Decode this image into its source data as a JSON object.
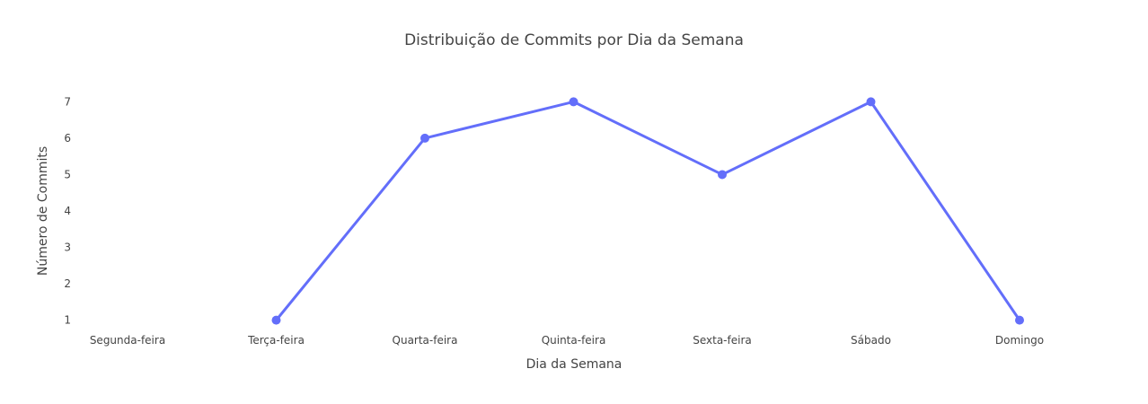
{
  "chart_data": {
    "type": "line",
    "title": "Distribuição de Commits por Dia da Semana",
    "xlabel": "Dia da Semana",
    "ylabel": "Número de Commits",
    "categories": [
      "Segunda-feira",
      "Terça-feira",
      "Quarta-feira",
      "Quinta-feira",
      "Sexta-feira",
      "Sábado",
      "Domingo"
    ],
    "series": [
      {
        "values": [
          null,
          1,
          6,
          7,
          5,
          7,
          1
        ],
        "color": "#636efa"
      }
    ],
    "yticks": [
      1,
      2,
      3,
      4,
      5,
      6,
      7
    ],
    "ylim": [
      0.67,
      7.33
    ],
    "grid": false,
    "markers": true
  }
}
